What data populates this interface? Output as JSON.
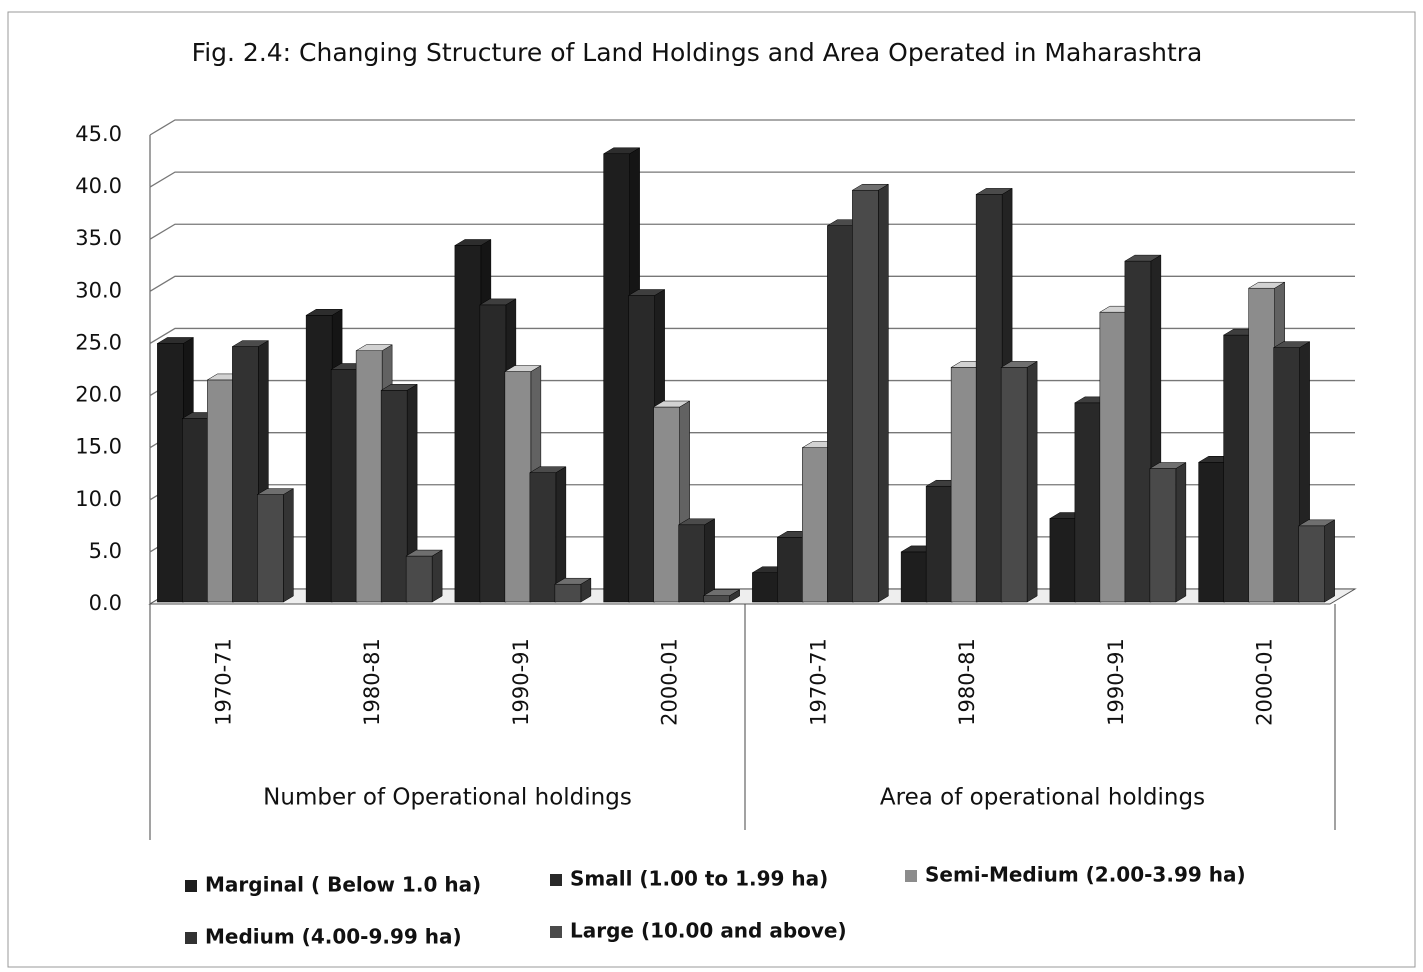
{
  "chart_data": {
    "type": "bar3d",
    "title": "Fig. 2.4: Changing Structure of Land Holdings and Area Operated in Maharashtra",
    "categories": [
      "1970-71",
      "1980-81",
      "1990-91",
      "2000-01",
      "1970-71",
      "1980-81",
      "1990-91",
      "2000-01"
    ],
    "groups": [
      "Number of Operational holdings",
      "Area of operational holdings"
    ],
    "series": [
      {
        "name": "Marginal ( Below 1.0 ha)",
        "color": "#1e1e1e",
        "values": [
          25.0,
          27.7,
          34.4,
          43.2,
          3.0,
          5.0,
          8.2,
          13.6
        ]
      },
      {
        "name": "Small (1.00 to 1.99 ha)",
        "color": "#292929",
        "values": [
          17.8,
          22.5,
          28.7,
          29.6,
          6.4,
          11.3,
          19.3,
          25.8
        ]
      },
      {
        "name": "Semi-Medium (2.00-3.99 ha)",
        "color": "#8c8c8c",
        "values": [
          21.5,
          24.3,
          22.3,
          18.9,
          15.0,
          22.7,
          28.0,
          30.3
        ]
      },
      {
        "name": "Medium (4.00-9.99 ha)",
        "color": "#323232",
        "values": [
          24.7,
          20.5,
          12.6,
          7.6,
          36.3,
          39.3,
          32.9,
          24.6
        ]
      },
      {
        "name": "Large (10.00 and above)",
        "color": "#4a4a4a",
        "values": [
          10.5,
          4.6,
          1.9,
          0.8,
          39.7,
          22.7,
          13.0,
          7.5
        ]
      }
    ],
    "ylim": [
      0,
      45
    ],
    "yticks": [
      {
        "value": 0,
        "label": "0.0"
      },
      {
        "value": 5,
        "label": "5.0"
      },
      {
        "value": 10,
        "label": "10.0"
      },
      {
        "value": 15,
        "label": "15.0"
      },
      {
        "value": 20,
        "label": "20.0"
      },
      {
        "value": 25,
        "label": "25.0"
      },
      {
        "value": 30,
        "label": "30.0"
      },
      {
        "value": 35,
        "label": "35.0"
      },
      {
        "value": 40,
        "label": "40.0"
      },
      {
        "value": 45,
        "label": "45.0"
      }
    ],
    "grid": true
  }
}
